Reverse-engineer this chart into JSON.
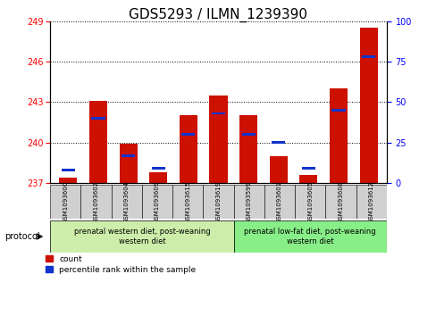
{
  "title": "GDS5293 / ILMN_1239390",
  "samples": [
    "GSM1093600",
    "GSM1093602",
    "GSM1093604",
    "GSM1093609",
    "GSM1093615",
    "GSM1093619",
    "GSM1093599",
    "GSM1093601",
    "GSM1093605",
    "GSM1093608",
    "GSM1093612"
  ],
  "red_values": [
    237.4,
    243.1,
    239.9,
    237.8,
    242.0,
    243.5,
    242.0,
    239.0,
    237.6,
    244.0,
    248.5
  ],
  "blue_percentile": [
    8,
    40,
    17,
    9,
    30,
    43,
    30,
    25,
    9,
    45,
    78
  ],
  "ylim_left": [
    237,
    249
  ],
  "ylim_right": [
    0,
    100
  ],
  "yticks_left": [
    237,
    240,
    243,
    246,
    249
  ],
  "yticks_right": [
    0,
    25,
    50,
    75,
    100
  ],
  "group1_label": "prenatal western diet, post-weaning\nwestern diet",
  "group2_label": "prenatal low-fat diet, post-weaning\nwestern diet",
  "group1_indices": [
    0,
    1,
    2,
    3,
    4,
    5
  ],
  "group2_indices": [
    6,
    7,
    8,
    9,
    10
  ],
  "protocol_label": "protocol",
  "legend_count": "count",
  "legend_percentile": "percentile rank within the sample",
  "bar_color_red": "#cc1100",
  "bar_color_blue": "#1133cc",
  "group1_bg": "#cceeaa",
  "group2_bg": "#88ee88",
  "sample_bg": "#d0d0d0",
  "bar_width": 0.6,
  "title_fontsize": 11,
  "tick_fontsize": 7,
  "label_fontsize": 6
}
